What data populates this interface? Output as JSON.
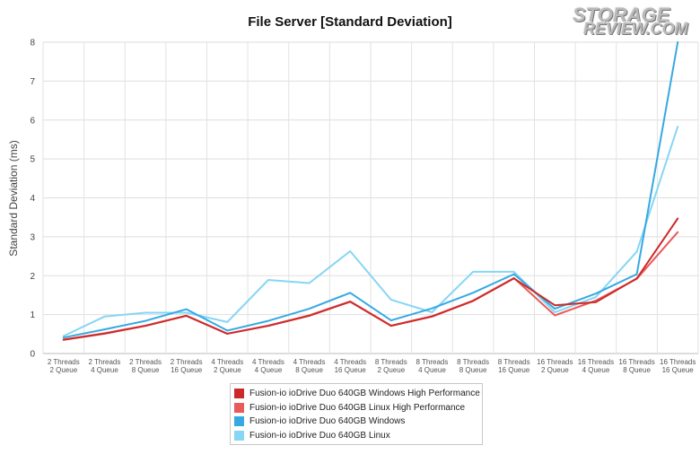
{
  "logo": {
    "line1": "STORAGE",
    "line2": "REVIEW.COM"
  },
  "chart_data": {
    "type": "line",
    "title": "File Server [Standard Deviation]",
    "xlabel": "",
    "ylabel": "Standard Deviation (ms)",
    "ylim": [
      0,
      8
    ],
    "yticks": [
      0,
      1,
      2,
      3,
      4,
      5,
      6,
      7,
      8
    ],
    "grid": true,
    "legend_position": "bottom-center",
    "categories": [
      [
        "2 Threads",
        "2 Queue"
      ],
      [
        "2 Threads",
        "4 Queue"
      ],
      [
        "2 Threads",
        "8 Queue"
      ],
      [
        "2 Threads",
        "16 Queue"
      ],
      [
        "4 Threads",
        "2 Queue"
      ],
      [
        "4 Threads",
        "4 Queue"
      ],
      [
        "4 Threads",
        "8 Queue"
      ],
      [
        "4 Threads",
        "16 Queue"
      ],
      [
        "8 Threads",
        "2 Queue"
      ],
      [
        "8 Threads",
        "4 Queue"
      ],
      [
        "8 Threads",
        "8 Queue"
      ],
      [
        "8 Threads",
        "16 Queue"
      ],
      [
        "16 Threads",
        "2 Queue"
      ],
      [
        "16 Threads",
        "4 Queue"
      ],
      [
        "16 Threads",
        "8 Queue"
      ],
      [
        "16 Threads",
        "16 Queue"
      ]
    ],
    "series": [
      {
        "name": "Fusion-io ioDrive Duo 640GB Windows High Performance",
        "color": "#cc2a2a",
        "values": [
          0.35,
          0.51,
          0.71,
          0.97,
          0.51,
          0.71,
          0.97,
          1.33,
          0.71,
          0.95,
          1.35,
          1.93,
          1.24,
          1.32,
          1.93,
          3.47
        ]
      },
      {
        "name": "Fusion-io ioDrive Duo 640GB Linux High Performance",
        "color": "#ea5a5a",
        "values": [
          0.36,
          0.52,
          0.72,
          0.97,
          0.51,
          0.72,
          0.98,
          1.34,
          0.72,
          0.96,
          1.36,
          1.94,
          0.98,
          1.36,
          1.92,
          3.12
        ]
      },
      {
        "name": "Fusion-io ioDrive Duo 640GB Windows",
        "color": "#36a9e2",
        "values": [
          0.41,
          0.62,
          0.84,
          1.14,
          0.59,
          0.84,
          1.15,
          1.56,
          0.85,
          1.16,
          1.56,
          2.04,
          1.15,
          1.54,
          2.04,
          8.0
        ]
      },
      {
        "name": "Fusion-io ioDrive Duo 640GB Linux",
        "color": "#86d6f4",
        "values": [
          0.45,
          0.95,
          1.05,
          1.05,
          0.81,
          1.89,
          1.81,
          2.63,
          1.38,
          1.06,
          2.1,
          2.1,
          1.06,
          1.45,
          2.62,
          5.83
        ]
      }
    ]
  }
}
